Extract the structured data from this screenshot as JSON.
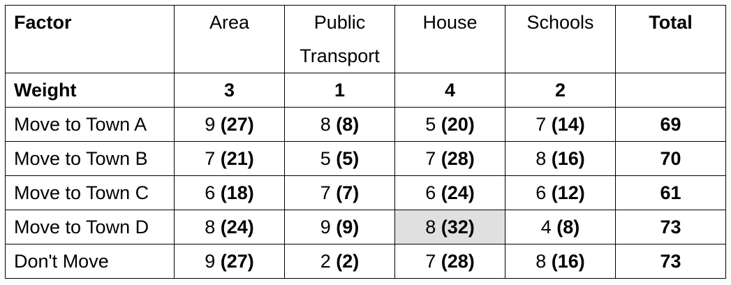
{
  "header": {
    "factor": "Factor",
    "cols": [
      "Area",
      "Public",
      "House",
      "Schools"
    ],
    "public_line2": "Transport",
    "total": "Total"
  },
  "weights": {
    "label": "Weight",
    "values": [
      "3",
      "1",
      "4",
      "2"
    ]
  },
  "rows": [
    {
      "label": "Move to Town A",
      "cells": [
        [
          "9",
          "(27)"
        ],
        [
          "8",
          "(8)"
        ],
        [
          "5",
          "(20)"
        ],
        [
          "7",
          "(14)"
        ]
      ],
      "total": "69"
    },
    {
      "label": "Move to Town B",
      "cells": [
        [
          "7",
          "(21)"
        ],
        [
          "5",
          "(5)"
        ],
        [
          "7",
          "(28)"
        ],
        [
          "8",
          "(16)"
        ]
      ],
      "total": "70"
    },
    {
      "label": "Move to Town C",
      "cells": [
        [
          "6",
          "(18)"
        ],
        [
          "7",
          "(7)"
        ],
        [
          "6",
          "(24)"
        ],
        [
          "6",
          "(12)"
        ]
      ],
      "total": "61"
    },
    {
      "label": "Move to Town D",
      "cells": [
        [
          "8",
          "(24)"
        ],
        [
          "9",
          "(9)"
        ],
        [
          "8",
          "(32)"
        ],
        [
          "4",
          "(8)"
        ]
      ],
      "total": "73"
    },
    {
      "label": "Don't Move",
      "cells": [
        [
          "9",
          "(27)"
        ],
        [
          "2",
          "(2)"
        ],
        [
          "7",
          "(28)"
        ],
        [
          "8",
          "(16)"
        ]
      ],
      "total": "73"
    }
  ],
  "highlight_color": "#e0e0e0"
}
